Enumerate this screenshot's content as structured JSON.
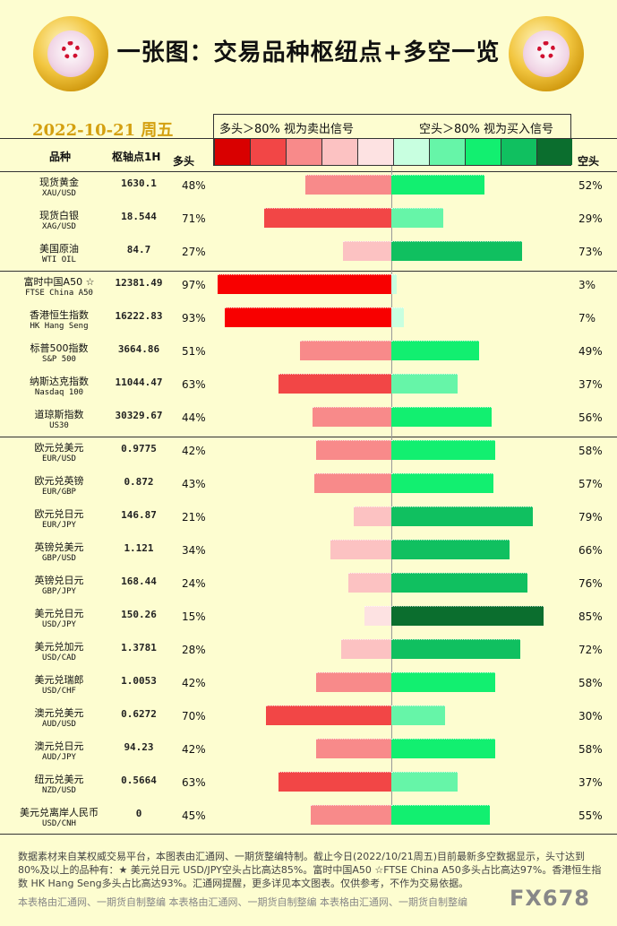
{
  "title": "一张图：交易品种枢纽点+多空一览",
  "date": "2022-10-21 周五",
  "legend": {
    "bull_text": "多头＞80%  视为卖出信号",
    "bear_text": "空头＞80%  视为买入信号",
    "swatches": [
      "#d90000",
      "#f24646",
      "#f88a8a",
      "#fcc2c2",
      "#fde2e2",
      "#c8ffe0",
      "#66f5a8",
      "#12ef70",
      "#10c060",
      "#0b6e2e"
    ]
  },
  "headers": {
    "symbol": "品种",
    "pivot": "枢轴点1H",
    "long": "多头",
    "short": "空头"
  },
  "chart_data": {
    "type": "bar",
    "orientation": "diverging-horizontal",
    "series": [
      {
        "name": "多头",
        "values": [
          48,
          71,
          27,
          97,
          93,
          51,
          63,
          44,
          42,
          43,
          21,
          34,
          24,
          15,
          28,
          42,
          70,
          42,
          63,
          45
        ]
      },
      {
        "name": "空头",
        "values": [
          52,
          29,
          73,
          3,
          7,
          49,
          37,
          56,
          58,
          57,
          79,
          66,
          76,
          85,
          72,
          58,
          30,
          58,
          37,
          55
        ]
      }
    ],
    "rows": [
      {
        "cn": "现货黄金",
        "en": "XAU/USD",
        "pivot": "1630.1",
        "long": "48%",
        "short": "52%",
        "lv": 48,
        "sv": 52,
        "lc": "#f88a8a",
        "sc": "#12ef70"
      },
      {
        "cn": "现货白银",
        "en": "XAG/USD",
        "pivot": "18.544",
        "long": "71%",
        "short": "29%",
        "lv": 71,
        "sv": 29,
        "lc": "#f24646",
        "sc": "#66f5a8"
      },
      {
        "cn": "美国原油",
        "en": "WTI OIL",
        "pivot": "84.7",
        "long": "27%",
        "short": "73%",
        "lv": 27,
        "sv": 73,
        "lc": "#fcc2c2",
        "sc": "#10c060"
      },
      {
        "cn": "富时中国A50 ☆",
        "en": "FTSE China A50",
        "pivot": "12381.49",
        "long": "97%",
        "short": "3%",
        "lv": 97,
        "sv": 3,
        "lc": "#f80000",
        "sc": "#c8ffe0"
      },
      {
        "cn": "香港恒生指数",
        "en": "HK Hang Seng",
        "pivot": "16222.83",
        "long": "93%",
        "short": "7%",
        "lv": 93,
        "sv": 7,
        "lc": "#f80000",
        "sc": "#c8ffe0"
      },
      {
        "cn": "标普500指数",
        "en": "S&P 500",
        "pivot": "3664.86",
        "long": "51%",
        "short": "49%",
        "lv": 51,
        "sv": 49,
        "lc": "#f88a8a",
        "sc": "#12ef70"
      },
      {
        "cn": "纳斯达克指数",
        "en": "Nasdaq 100",
        "pivot": "11044.47",
        "long": "63%",
        "short": "37%",
        "lv": 63,
        "sv": 37,
        "lc": "#f24646",
        "sc": "#66f5a8"
      },
      {
        "cn": "道琼斯指数",
        "en": "US30",
        "pivot": "30329.67",
        "long": "44%",
        "short": "56%",
        "lv": 44,
        "sv": 56,
        "lc": "#f88a8a",
        "sc": "#12ef70"
      },
      {
        "cn": "欧元兑美元",
        "en": "EUR/USD",
        "pivot": "0.9775",
        "long": "42%",
        "short": "58%",
        "lv": 42,
        "sv": 58,
        "lc": "#f88a8a",
        "sc": "#12ef70"
      },
      {
        "cn": "欧元兑英镑",
        "en": "EUR/GBP",
        "pivot": "0.872",
        "long": "43%",
        "short": "57%",
        "lv": 43,
        "sv": 57,
        "lc": "#f88a8a",
        "sc": "#12ef70"
      },
      {
        "cn": "欧元兑日元",
        "en": "EUR/JPY",
        "pivot": "146.87",
        "long": "21%",
        "short": "79%",
        "lv": 21,
        "sv": 79,
        "lc": "#fcc2c2",
        "sc": "#10c060"
      },
      {
        "cn": "英镑兑美元",
        "en": "GBP/USD",
        "pivot": "1.121",
        "long": "34%",
        "short": "66%",
        "lv": 34,
        "sv": 66,
        "lc": "#fcc2c2",
        "sc": "#10c060"
      },
      {
        "cn": "英镑兑日元",
        "en": "GBP/JPY",
        "pivot": "168.44",
        "long": "24%",
        "short": "76%",
        "lv": 24,
        "sv": 76,
        "lc": "#fcc2c2",
        "sc": "#10c060"
      },
      {
        "cn": "美元兑日元",
        "en": "USD/JPY",
        "pivot": "150.26",
        "long": "15%",
        "short": "85%",
        "lv": 15,
        "sv": 85,
        "lc": "#fde2e2",
        "sc": "#0b6e2e"
      },
      {
        "cn": "美元兑加元",
        "en": "USD/CAD",
        "pivot": "1.3781",
        "long": "28%",
        "short": "72%",
        "lv": 28,
        "sv": 72,
        "lc": "#fcc2c2",
        "sc": "#10c060"
      },
      {
        "cn": "美元兑瑞郎",
        "en": "USD/CHF",
        "pivot": "1.0053",
        "long": "42%",
        "short": "58%",
        "lv": 42,
        "sv": 58,
        "lc": "#f88a8a",
        "sc": "#12ef70"
      },
      {
        "cn": "澳元兑美元",
        "en": "AUD/USD",
        "pivot": "0.6272",
        "long": "70%",
        "short": "30%",
        "lv": 70,
        "sv": 30,
        "lc": "#f24646",
        "sc": "#66f5a8"
      },
      {
        "cn": "澳元兑日元",
        "en": "AUD/JPY",
        "pivot": "94.23",
        "long": "42%",
        "short": "58%",
        "lv": 42,
        "sv": 58,
        "lc": "#f88a8a",
        "sc": "#12ef70"
      },
      {
        "cn": "纽元兑美元",
        "en": "NZD/USD",
        "pivot": "0.5664",
        "long": "63%",
        "short": "37%",
        "lv": 63,
        "sv": 37,
        "lc": "#f24646",
        "sc": "#66f5a8"
      },
      {
        "cn": "美元兑离岸人民币",
        "en": "USD/CNH",
        "pivot": "0",
        "long": "45%",
        "short": "55%",
        "lv": 45,
        "sv": 55,
        "lc": "#f88a8a",
        "sc": "#12ef70"
      }
    ]
  },
  "footer": {
    "text": "数据素材来自某权威交易平台，本图表由汇通网、一期货整编特制。截止今日(2022/10/21周五)目前最新多空数据显示，头寸达到80%及以上的品种有：★ 美元兑日元 USD/JPY空头占比高达85%。富时中国A50 ☆FTSE China A50多头占比高达97%。香港恒生指数 HK Hang Seng多头占比高达93%。汇通网提醒，更多详见本文图表。仅供参考，不作为交易依据。",
    "credit": "本表格由汇通网、一期货自制整编        本表格由汇通网、一期货自制整编        本表格由汇通网、一期货自制整编",
    "watermark": "FX678"
  }
}
